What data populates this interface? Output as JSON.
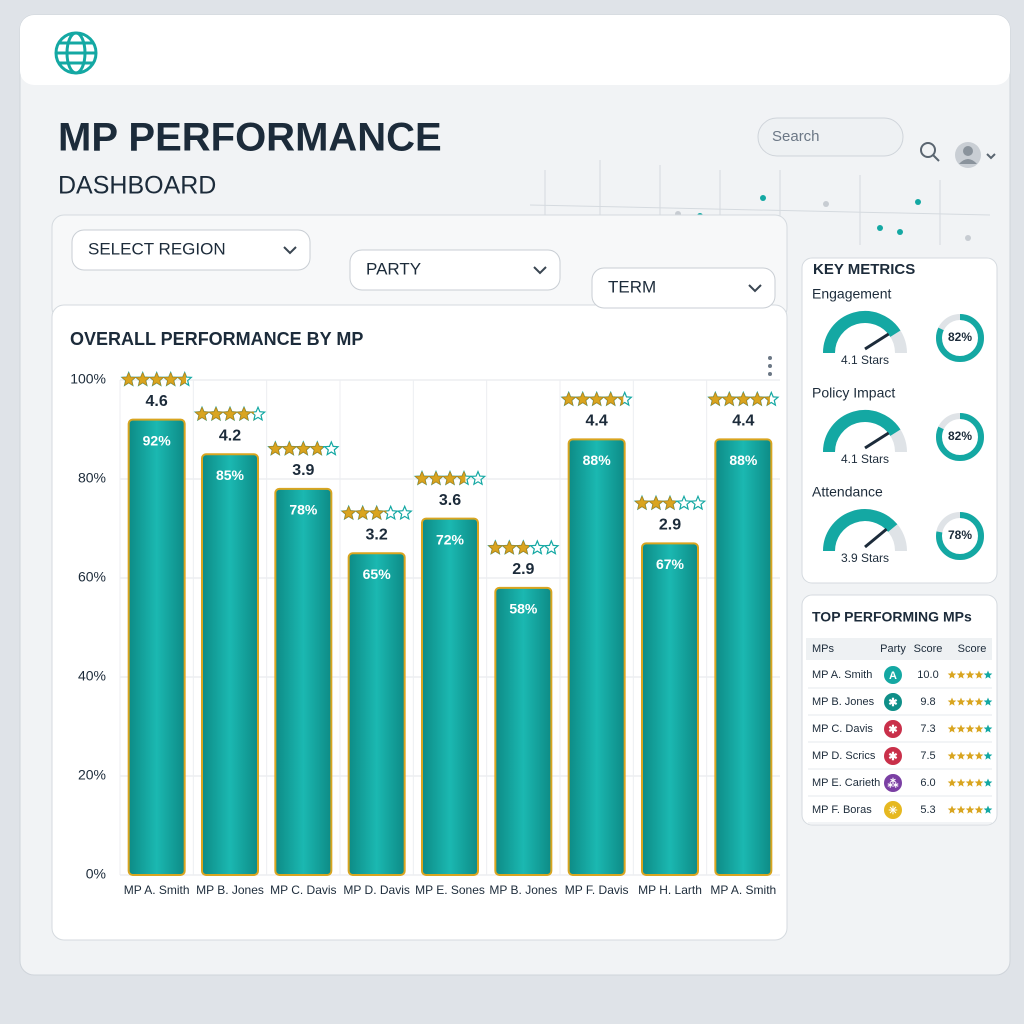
{
  "header": {
    "title": "MP PERFORMANCE",
    "subtitle": "DASHBOARD",
    "search_placeholder": "Search"
  },
  "filters": [
    "SELECT REGION",
    "PARTY",
    "TERM"
  ],
  "chart_data": {
    "type": "bar",
    "title": "OVERALL PERFORMANCE BY MP",
    "categories": [
      "MP A. Smith",
      "MP B. Jones",
      "MP C. Davis",
      "MP D. Davis",
      "MP E. Sones",
      "MP B. Jones",
      "MP F. Davis",
      "MP H. Larth",
      "MP A. Smith"
    ],
    "values": [
      92,
      85,
      78,
      65,
      72,
      58,
      88,
      67,
      88
    ],
    "value_labels": [
      "92%",
      "85%",
      "78%",
      "65%",
      "72%",
      "58%",
      "88%",
      "67%",
      "88%"
    ],
    "ratings": [
      4.6,
      4.2,
      3.9,
      3.2,
      3.6,
      2.9,
      4.4,
      2.9,
      4.4
    ],
    "color": "#14a8a3",
    "ylim": [
      0,
      100
    ],
    "yticks": [
      {
        "value": 0,
        "label": "0%"
      },
      {
        "value": 20,
        "label": "20%"
      },
      {
        "value": 40,
        "label": "40%"
      },
      {
        "value": 60,
        "label": "60%"
      },
      {
        "value": 80,
        "label": "80%"
      },
      {
        "value": 100,
        "label": "100%"
      }
    ],
    "grid": true
  },
  "key_metrics": {
    "title": "KEY METRICS",
    "items": [
      {
        "label": "Engagement",
        "stars": 4.1,
        "stars_label": "4.1 Stars",
        "percent": 82,
        "percent_label": "82%"
      },
      {
        "label": "Policy Impact",
        "stars": 4.1,
        "stars_label": "4.1 Stars",
        "percent": 82,
        "percent_label": "82%"
      },
      {
        "label": "Attendance",
        "stars": 3.9,
        "stars_label": "3.9 Stars",
        "percent": 78,
        "percent_label": "78%"
      }
    ]
  },
  "top_performers": {
    "title": "TOP PERFORMING MPs",
    "columns": [
      "MPs",
      "Party",
      "Score",
      "Score"
    ],
    "rows": [
      {
        "name": "MP A. Smith",
        "party": "A",
        "party_color": "#14a8a3",
        "score": "10.0"
      },
      {
        "name": "MP B. Jones",
        "party": "✱",
        "party_color": "#0f8f88",
        "score": "9.8"
      },
      {
        "name": "MP C. Davis",
        "party": "✱",
        "party_color": "#c9304a",
        "score": "7.3"
      },
      {
        "name": "MP D. Scrics",
        "party": "✱",
        "party_color": "#c9304a",
        "score": "7.5"
      },
      {
        "name": "MP E. Carieth",
        "party": "⁂",
        "party_color": "#7a3fa3",
        "score": "6.0"
      },
      {
        "name": "MP F. Boras",
        "party": "✳",
        "party_color": "#e6b820",
        "score": "5.3"
      }
    ]
  }
}
